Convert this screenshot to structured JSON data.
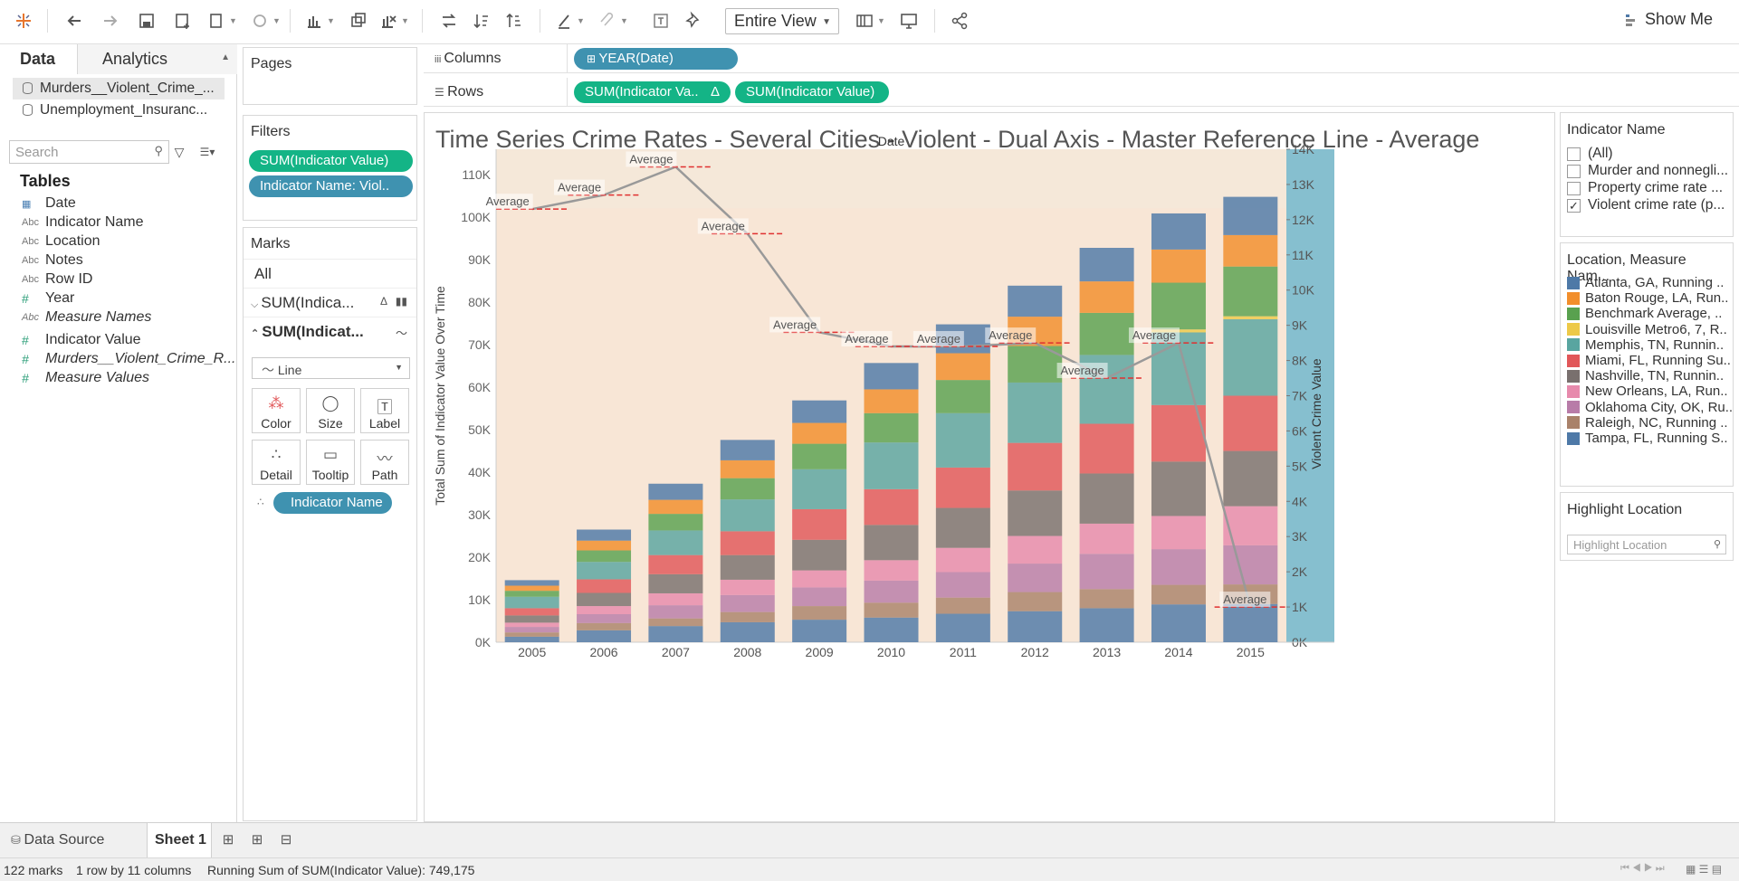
{
  "toolbar": {
    "fit": "Entire View",
    "show_me": "Show Me"
  },
  "data_pane": {
    "tab_data": "Data",
    "tab_analytics": "Analytics",
    "datasources": [
      "Murders__Violent_Crime_...",
      "Unemployment_Insuranc..."
    ],
    "search_placeholder": "Search",
    "tables_header": "Tables",
    "fields": [
      {
        "type": "date",
        "name": "Date"
      },
      {
        "type": "Abc",
        "name": "Indicator Name"
      },
      {
        "type": "Abc",
        "name": "Location"
      },
      {
        "type": "Abc",
        "name": "Notes"
      },
      {
        "type": "Abc",
        "name": "Row ID"
      },
      {
        "type": "#",
        "name": "Year"
      },
      {
        "type": "Abc",
        "name": "Measure Names"
      },
      {
        "type": "#",
        "name": "Indicator Value"
      },
      {
        "type": "#",
        "name": "Murders__Violent_Crime_R..."
      },
      {
        "type": "#",
        "name": "Measure Values"
      }
    ]
  },
  "pages_card": {
    "title": "Pages"
  },
  "filters_card": {
    "title": "Filters",
    "pills": [
      "SUM(Indicator Value)",
      "Indicator Name: Viol.."
    ]
  },
  "marks_card": {
    "title": "Marks",
    "rows": [
      "All",
      "SUM(Indica...",
      "SUM(Indicat..."
    ],
    "mark_type": "Line",
    "buttons": [
      "Color",
      "Size",
      "Label",
      "Detail",
      "Tooltip",
      "Path"
    ],
    "detail_pill": "Indicator Name"
  },
  "shelves": {
    "columns_label": "Columns",
    "rows_label": "Rows",
    "columns_pill": "YEAR(Date)",
    "rows_pills": [
      "SUM(Indicator Va..",
      "SUM(Indicator Value)"
    ]
  },
  "chart_title": "Time Series Crime Rates - Several Cities - Violent - Dual Axis - Master Reference Line - Average",
  "chart_data": {
    "type": "bar",
    "header": "Date",
    "ylabel_left": "Total Sum of Indicator Value Over Time",
    "ylabel_right": "Violent Crime Value",
    "ylim_left": [
      0,
      116000
    ],
    "ylim_right": [
      0,
      14000
    ],
    "left_ticks": [
      "0K",
      "10K",
      "20K",
      "30K",
      "40K",
      "50K",
      "60K",
      "70K",
      "80K",
      "90K",
      "100K",
      "110K"
    ],
    "right_ticks": [
      "0K",
      "1K",
      "2K",
      "3K",
      "4K",
      "5K",
      "6K",
      "7K",
      "8K",
      "9K",
      "10K",
      "11K",
      "12K",
      "13K",
      "14K"
    ],
    "categories": [
      "2005",
      "2006",
      "2007",
      "2008",
      "2009",
      "2010",
      "2011",
      "2012",
      "2013",
      "2014",
      "2015"
    ],
    "series": [
      {
        "name": "Atlanta, GA, Running ..",
        "color": "#4e79a7",
        "values": [
          1300,
          2600,
          3800,
          4800,
          5300,
          6200,
          6800,
          7300,
          7900,
          8500,
          9000
        ]
      },
      {
        "name": "Baton Rouge, LA, Run..",
        "color": "#f28e2b",
        "values": [
          1200,
          2300,
          3300,
          4200,
          4900,
          5600,
          6300,
          6900,
          7400,
          7800,
          7400
        ]
      },
      {
        "name": "Benchmark Average, ..",
        "color": "#59a14f",
        "values": [
          1400,
          2700,
          3900,
          5000,
          6000,
          6900,
          7800,
          8600,
          9900,
          11000,
          11700
        ]
      },
      {
        "name": "Louisville Metro6, 7, R..",
        "color": "#edc948",
        "values": [
          0,
          0,
          0,
          0,
          0,
          0,
          0,
          0,
          0,
          700,
          700
        ]
      },
      {
        "name": "Memphis, TN, Runnin..",
        "color": "#59a5a0",
        "values": [
          2700,
          4100,
          5800,
          7500,
          9400,
          11000,
          12800,
          14200,
          16200,
          17100,
          18000
        ]
      },
      {
        "name": "Miami, FL, Running Su..",
        "color": "#e15759",
        "values": [
          1700,
          3200,
          4500,
          5600,
          7200,
          8400,
          9500,
          11200,
          11700,
          13300,
          13000
        ]
      },
      {
        "name": "Nashville, TN, Runnin..",
        "color": "#79706e",
        "values": [
          1700,
          3100,
          4500,
          5800,
          7200,
          8300,
          9400,
          10700,
          11800,
          12800,
          13000
        ]
      },
      {
        "name": "New Orleans, LA, Run..",
        "color": "#e78aac",
        "values": [
          1000,
          1900,
          2800,
          3600,
          4000,
          4800,
          5700,
          6500,
          7100,
          7800,
          9200
        ]
      },
      {
        "name": "Oklahoma City, OK, Ru..",
        "color": "#b87ca8",
        "values": [
          1300,
          2100,
          3100,
          4000,
          4400,
          5200,
          6000,
          6700,
          8300,
          8400,
          9200
        ]
      },
      {
        "name": "Raleigh, NC, Running ..",
        "color": "#a9826a",
        "values": [
          1000,
          1700,
          1800,
          2400,
          3200,
          3500,
          3800,
          4500,
          4500,
          4600,
          4600
        ]
      },
      {
        "name": "Tampa, FL, Running S..",
        "color": "#4e79a7",
        "values": [
          1300,
          2800,
          3800,
          4700,
          5300,
          5800,
          6700,
          7300,
          8000,
          8900,
          9000
        ]
      }
    ],
    "line": {
      "name": "Violent crime rate",
      "values": [
        12300,
        12700,
        13500,
        11600,
        8800,
        8400,
        8400,
        8500,
        7500,
        8500,
        1000
      ]
    },
    "average_label": "Average"
  },
  "legends": {
    "indicator_title": "Indicator Name",
    "indicator_items": [
      {
        "label": "(All)",
        "checked": false
      },
      {
        "label": "Murder and nonnegli...",
        "checked": false
      },
      {
        "label": "Property crime rate ...",
        "checked": false
      },
      {
        "label": "Violent crime rate (p...",
        "checked": true
      }
    ],
    "location_title": "Location, Measure Nam...",
    "highlight_title": "Highlight Location",
    "highlight_placeholder": "Highlight Location"
  },
  "sheet_tabs": {
    "data_source": "Data Source",
    "sheet": "Sheet 1"
  },
  "status_bar": {
    "marks": "122 marks",
    "dims": "1 row by 11 columns",
    "running_sum": "Running Sum of SUM(Indicator Value): 749,175"
  }
}
